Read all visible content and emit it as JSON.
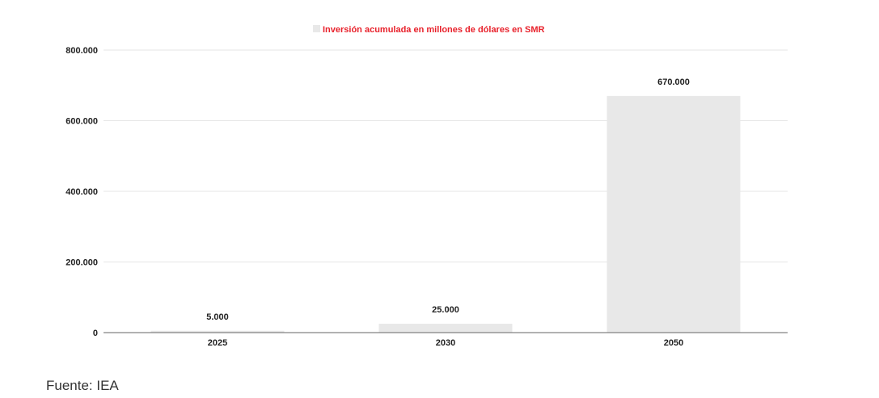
{
  "chart_data": {
    "type": "bar",
    "title": "",
    "categories": [
      "2025",
      "2030",
      "2050"
    ],
    "series": [
      {
        "name": "Inversión acumulada en millones de dólares en SMR",
        "values": [
          5000,
          25000,
          670000
        ]
      }
    ],
    "data_labels": [
      "5.000",
      "25.000",
      "670.000"
    ],
    "yticks": [
      0,
      200000,
      400000,
      600000,
      800000
    ],
    "ytick_labels": [
      "0",
      "200.000",
      "400.000",
      "600.000",
      "800.000"
    ],
    "ylim": [
      0,
      800000
    ],
    "xlabel": "",
    "ylabel": "",
    "grid": true,
    "legend_position": "top-center"
  },
  "colors": {
    "bar": "#e8e8e8",
    "legend_text": "#e8212b",
    "grid": "#e6e6e6",
    "axis": "#666666"
  },
  "source": "Fuente: IEA"
}
